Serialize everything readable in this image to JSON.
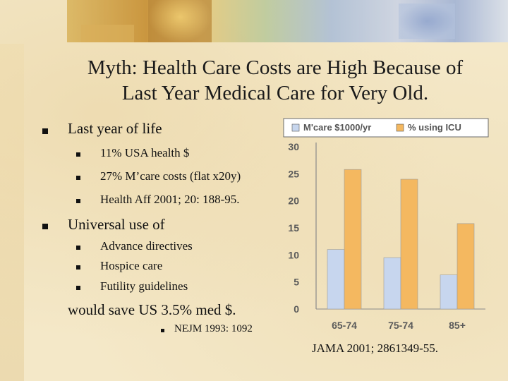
{
  "slide": {
    "title_line1": "Myth: Health Care Costs are High Because of",
    "title_line2": "Last Year Medical Care for Very Old."
  },
  "bullets": {
    "b1": {
      "text": "Last year of life",
      "sub": [
        "11% USA health $",
        "27% M’care costs (flat x20y)",
        "Health Aff 2001; 20: 188-95."
      ]
    },
    "b2": {
      "text": "Universal use of",
      "sub": [
        "Advance directives",
        "Hospice care",
        "Futility guidelines"
      ],
      "tail": "would save US 3.5% med $.",
      "ref": "NEJM 1993: 1092"
    }
  },
  "chart_data": {
    "type": "bar",
    "categories": [
      "65-74",
      "75-74",
      "85+"
    ],
    "series": [
      {
        "name": "M'care $1000/yr",
        "values": [
          11,
          9.5,
          6.3
        ],
        "color": "#c7d6ee"
      },
      {
        "name": "% using ICU",
        "values": [
          25.8,
          24,
          15.8
        ],
        "color": "#f4b860"
      }
    ],
    "y_ticks": [
      "0",
      "5",
      "10",
      "15",
      "20",
      "25",
      "30"
    ],
    "ylim": [
      0,
      30
    ],
    "legend": "top",
    "title": "",
    "xlabel": "",
    "ylabel": ""
  },
  "citation": "JAMA 2001; 2861349-55."
}
